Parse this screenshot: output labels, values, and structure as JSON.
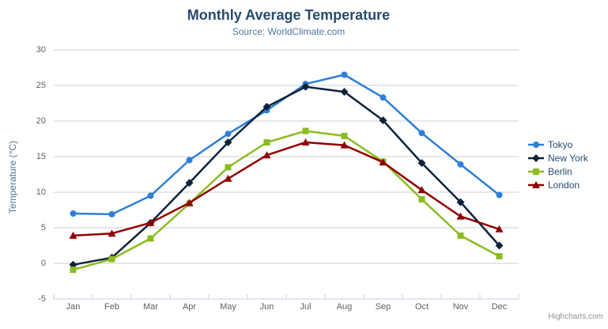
{
  "chart": {
    "title": "Monthly Average Temperature",
    "subtitle": "Source: WorldClimate.com",
    "credit": "Highcharts.com",
    "context_button_icon": "hamburger-icon"
  },
  "chart_data": {
    "type": "line",
    "title": "Monthly Average Temperature",
    "subtitle": "Source: WorldClimate.com",
    "xlabel": "",
    "ylabel": "Temperature (°C)",
    "categories": [
      "Jan",
      "Feb",
      "Mar",
      "Apr",
      "May",
      "Jun",
      "Jul",
      "Aug",
      "Sep",
      "Oct",
      "Nov",
      "Dec"
    ],
    "series": [
      {
        "name": "Tokyo",
        "color": "#2f7ed8",
        "marker": "circle",
        "values": [
          7.0,
          6.9,
          9.5,
          14.5,
          18.2,
          21.5,
          25.2,
          26.5,
          23.3,
          18.3,
          13.9,
          9.6
        ]
      },
      {
        "name": "New York",
        "color": "#0d233a",
        "marker": "diamond",
        "values": [
          -0.2,
          0.8,
          5.7,
          11.3,
          17.0,
          22.0,
          24.8,
          24.1,
          20.1,
          14.1,
          8.6,
          2.5
        ]
      },
      {
        "name": "Berlin",
        "color": "#8bbc21",
        "marker": "square",
        "values": [
          -0.9,
          0.6,
          3.5,
          8.4,
          13.5,
          17.0,
          18.6,
          17.9,
          14.3,
          9.0,
          3.9,
          1.0
        ]
      },
      {
        "name": "London",
        "color": "#910000",
        "marker": "triangle",
        "values": [
          3.9,
          4.2,
          5.7,
          8.5,
          11.9,
          15.2,
          17.0,
          16.6,
          14.2,
          10.3,
          6.6,
          4.8
        ]
      }
    ],
    "ylim": [
      -5,
      30
    ],
    "yticks": [
      -5,
      0,
      5,
      10,
      15,
      20,
      25,
      30
    ],
    "grid": true,
    "legend_position": "right"
  },
  "colors": {
    "title": "#274b6d",
    "subtitle": "#4d759e",
    "axis_label": "#606060",
    "axis_line": "#c0d0e0",
    "grid_line": "#cfcfcf",
    "legend_text": "#274b6d",
    "credit": "#909090"
  }
}
